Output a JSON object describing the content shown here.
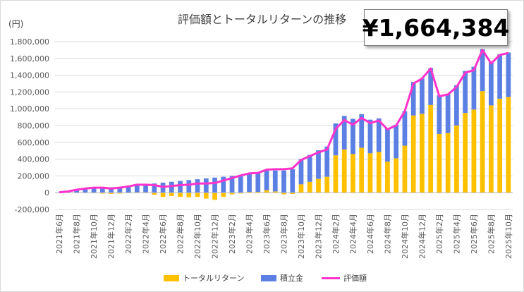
{
  "title": "評価額とトータルリターンの推移",
  "unit_label": "(円)",
  "total_value": "¥1,664,384",
  "colors": {
    "return": "#ffc000",
    "contribution": "#5b7fe3",
    "valuation": "#ff33cc",
    "grid": "#d9d9d9",
    "axis": "#bfbfbf"
  },
  "chart_data": {
    "type": "bar",
    "stacked": true,
    "ylim": [
      -200000,
      1800000
    ],
    "yticks": [
      -200000,
      0,
      200000,
      400000,
      600000,
      800000,
      1000000,
      1200000,
      1400000,
      1600000,
      1800000
    ],
    "ytick_labels": [
      "-200,000",
      "0",
      "200,000",
      "400,000",
      "600,000",
      "800,000",
      "1,000,000",
      "1,200,000",
      "1,400,000",
      "1,600,000",
      "1,800,000"
    ],
    "grid": true,
    "legend_position": "bottom",
    "categories": [
      "2021年6月",
      "2021年7月",
      "2021年8月",
      "2021年9月",
      "2021年10月",
      "2021年11月",
      "2021年12月",
      "2022年1月",
      "2022年2月",
      "2022年3月",
      "2022年4月",
      "2022年5月",
      "2022年6月",
      "2022年7月",
      "2022年8月",
      "2022年9月",
      "2022年10月",
      "2022年11月",
      "2022年12月",
      "2023年1月",
      "2023年2月",
      "2023年3月",
      "2023年4月",
      "2023年5月",
      "2023年6月",
      "2023年7月",
      "2023年8月",
      "2023年9月",
      "2023年10月",
      "2023年11月",
      "2023年12月",
      "2024年1月",
      "2024年2月",
      "2024年3月",
      "2024年4月",
      "2024年5月",
      "2024年6月",
      "2024年7月",
      "2024年8月",
      "2024年9月",
      "2024年10月",
      "2024年11月",
      "2024年12月",
      "2025年1月",
      "2025年2月",
      "2025年3月",
      "2025年4月",
      "2025年5月",
      "2025年6月",
      "2025年7月",
      "2025年8月",
      "2025年9月",
      "2025年10月"
    ],
    "x_tick_labels": [
      "2021年6月",
      "",
      "2021年8月",
      "",
      "2021年10月",
      "",
      "2021年12月",
      "",
      "2022年2月",
      "",
      "2022年4月",
      "",
      "2022年6月",
      "",
      "2022年8月",
      "",
      "2022年10月",
      "",
      "2022年12月",
      "",
      "2023年2月",
      "",
      "2023年4月",
      "",
      "2023年6月",
      "",
      "2023年8月",
      "",
      "2023年10月",
      "",
      "2023年12月",
      "",
      "2024年2月",
      "",
      "2024年4月",
      "",
      "2024年6月",
      "",
      "2024年8月",
      "",
      "2024年10月",
      "",
      "2024年12月",
      "",
      "2025年2月",
      "",
      "2025年4月",
      "",
      "2025年6月",
      "",
      "2025年8月",
      "",
      "2025年10月"
    ],
    "series": [
      {
        "name": "トータルリターン",
        "kind": "bar",
        "values": [
          0,
          0,
          0,
          0,
          -5000,
          -10000,
          -15000,
          -10000,
          -5000,
          5000,
          5000,
          -25000,
          -50000,
          -40000,
          -50000,
          -55000,
          -50000,
          -70000,
          -85000,
          -50000,
          -20000,
          -10000,
          10000,
          10000,
          30000,
          15000,
          -20000,
          -15000,
          100000,
          130000,
          165000,
          190000,
          445000,
          515000,
          460000,
          535000,
          470000,
          485000,
          370000,
          410000,
          560000,
          920000,
          940000,
          1045000,
          700000,
          710000,
          800000,
          950000,
          990000,
          1210000,
          1040000,
          1120000,
          1140000
        ]
      },
      {
        "name": "積立金",
        "kind": "bar",
        "values": [
          5000,
          15000,
          35000,
          50000,
          60000,
          70000,
          65000,
          70000,
          80000,
          90000,
          100000,
          110000,
          120000,
          130000,
          140000,
          150000,
          160000,
          170000,
          180000,
          190000,
          200000,
          210000,
          220000,
          230000,
          240000,
          250000,
          265000,
          280000,
          300000,
          320000,
          340000,
          360000,
          380000,
          400000,
          420000,
          400000,
          400000,
          400000,
          400000,
          400000,
          410000,
          400000,
          420000,
          440000,
          460000,
          470000,
          480000,
          500000,
          510000,
          500000,
          520000,
          530000,
          530000
        ]
      },
      {
        "name": "評価額",
        "kind": "line",
        "values": [
          5000,
          15000,
          35000,
          50000,
          60000,
          60000,
          50000,
          60000,
          75000,
          95000,
          95000,
          90000,
          70000,
          80000,
          90000,
          95000,
          110000,
          110000,
          115000,
          145000,
          175000,
          205000,
          230000,
          235000,
          275000,
          280000,
          280000,
          290000,
          390000,
          435000,
          480000,
          515000,
          760000,
          865000,
          810000,
          890000,
          830000,
          860000,
          755000,
          800000,
          970000,
          1300000,
          1360000,
          1480000,
          1150000,
          1170000,
          1260000,
          1430000,
          1460000,
          1700000,
          1540000,
          1640000,
          1664384
        ]
      }
    ]
  }
}
